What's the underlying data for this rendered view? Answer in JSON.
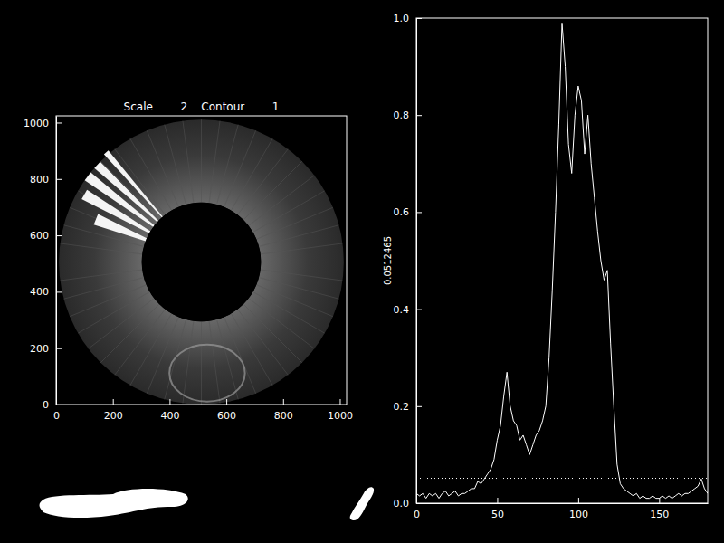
{
  "chart_data": [
    {
      "type": "image",
      "title": "Scale        2    Contour        1",
      "xlim": [
        0,
        1024
      ],
      "ylim": [
        0,
        1024
      ],
      "xticks": [
        0,
        200,
        400,
        600,
        800,
        1000
      ],
      "yticks": [
        0,
        200,
        400,
        600,
        800,
        1000
      ]
    },
    {
      "type": "line",
      "y_label": "0.0512465",
      "xlim": [
        0,
        180
      ],
      "ylim": [
        0,
        1
      ],
      "xticks": [
        0,
        50,
        100,
        150
      ],
      "yticks": [
        {
          "value": 0,
          "label": "0.0"
        },
        0.2,
        0.4,
        0.6,
        0.8,
        {
          "value": 1,
          "label": "1.0"
        }
      ],
      "x": [
        0,
        2,
        4,
        6,
        8,
        10,
        12,
        14,
        16,
        18,
        20,
        22,
        24,
        26,
        28,
        30,
        32,
        34,
        36,
        38,
        40,
        42,
        44,
        46,
        48,
        50,
        52,
        54,
        56,
        58,
        60,
        62,
        64,
        66,
        68,
        70,
        72,
        74,
        76,
        78,
        80,
        82,
        84,
        86,
        88,
        90,
        92,
        94,
        96,
        98,
        100,
        102,
        104,
        106,
        108,
        110,
        112,
        114,
        116,
        118,
        120,
        122,
        124,
        126,
        128,
        130,
        132,
        134,
        136,
        138,
        140,
        142,
        144,
        146,
        148,
        150,
        152,
        154,
        156,
        158,
        160,
        162,
        164,
        166,
        168,
        170,
        172,
        174,
        176,
        178,
        180
      ],
      "series": [
        {
          "color": "#ffffff",
          "line_style": "solid",
          "values": [
            0.02,
            0.015,
            0.02,
            0.01,
            0.02,
            0.015,
            0.02,
            0.01,
            0.02,
            0.025,
            0.015,
            0.02,
            0.025,
            0.015,
            0.02,
            0.02,
            0.025,
            0.03,
            0.03,
            0.045,
            0.04,
            0.05,
            0.06,
            0.07,
            0.09,
            0.13,
            0.16,
            0.22,
            0.27,
            0.2,
            0.17,
            0.16,
            0.13,
            0.14,
            0.12,
            0.1,
            0.12,
            0.14,
            0.15,
            0.17,
            0.2,
            0.3,
            0.44,
            0.6,
            0.78,
            0.99,
            0.9,
            0.74,
            0.68,
            0.8,
            0.86,
            0.83,
            0.72,
            0.8,
            0.7,
            0.63,
            0.56,
            0.5,
            0.46,
            0.48,
            0.33,
            0.2,
            0.08,
            0.04,
            0.03,
            0.025,
            0.02,
            0.015,
            0.02,
            0.01,
            0.015,
            0.01,
            0.01,
            0.015,
            0.01,
            0.01,
            0.015,
            0.01,
            0.015,
            0.01,
            0.015,
            0.02,
            0.015,
            0.02,
            0.02,
            0.025,
            0.03,
            0.035,
            0.05,
            0.03,
            0.02
          ]
        },
        {
          "color": "#ffffff",
          "line_style": "dotted",
          "x": [
            0,
            180
          ],
          "values": [
            0.0512465,
            0.0512465
          ]
        }
      ]
    }
  ]
}
